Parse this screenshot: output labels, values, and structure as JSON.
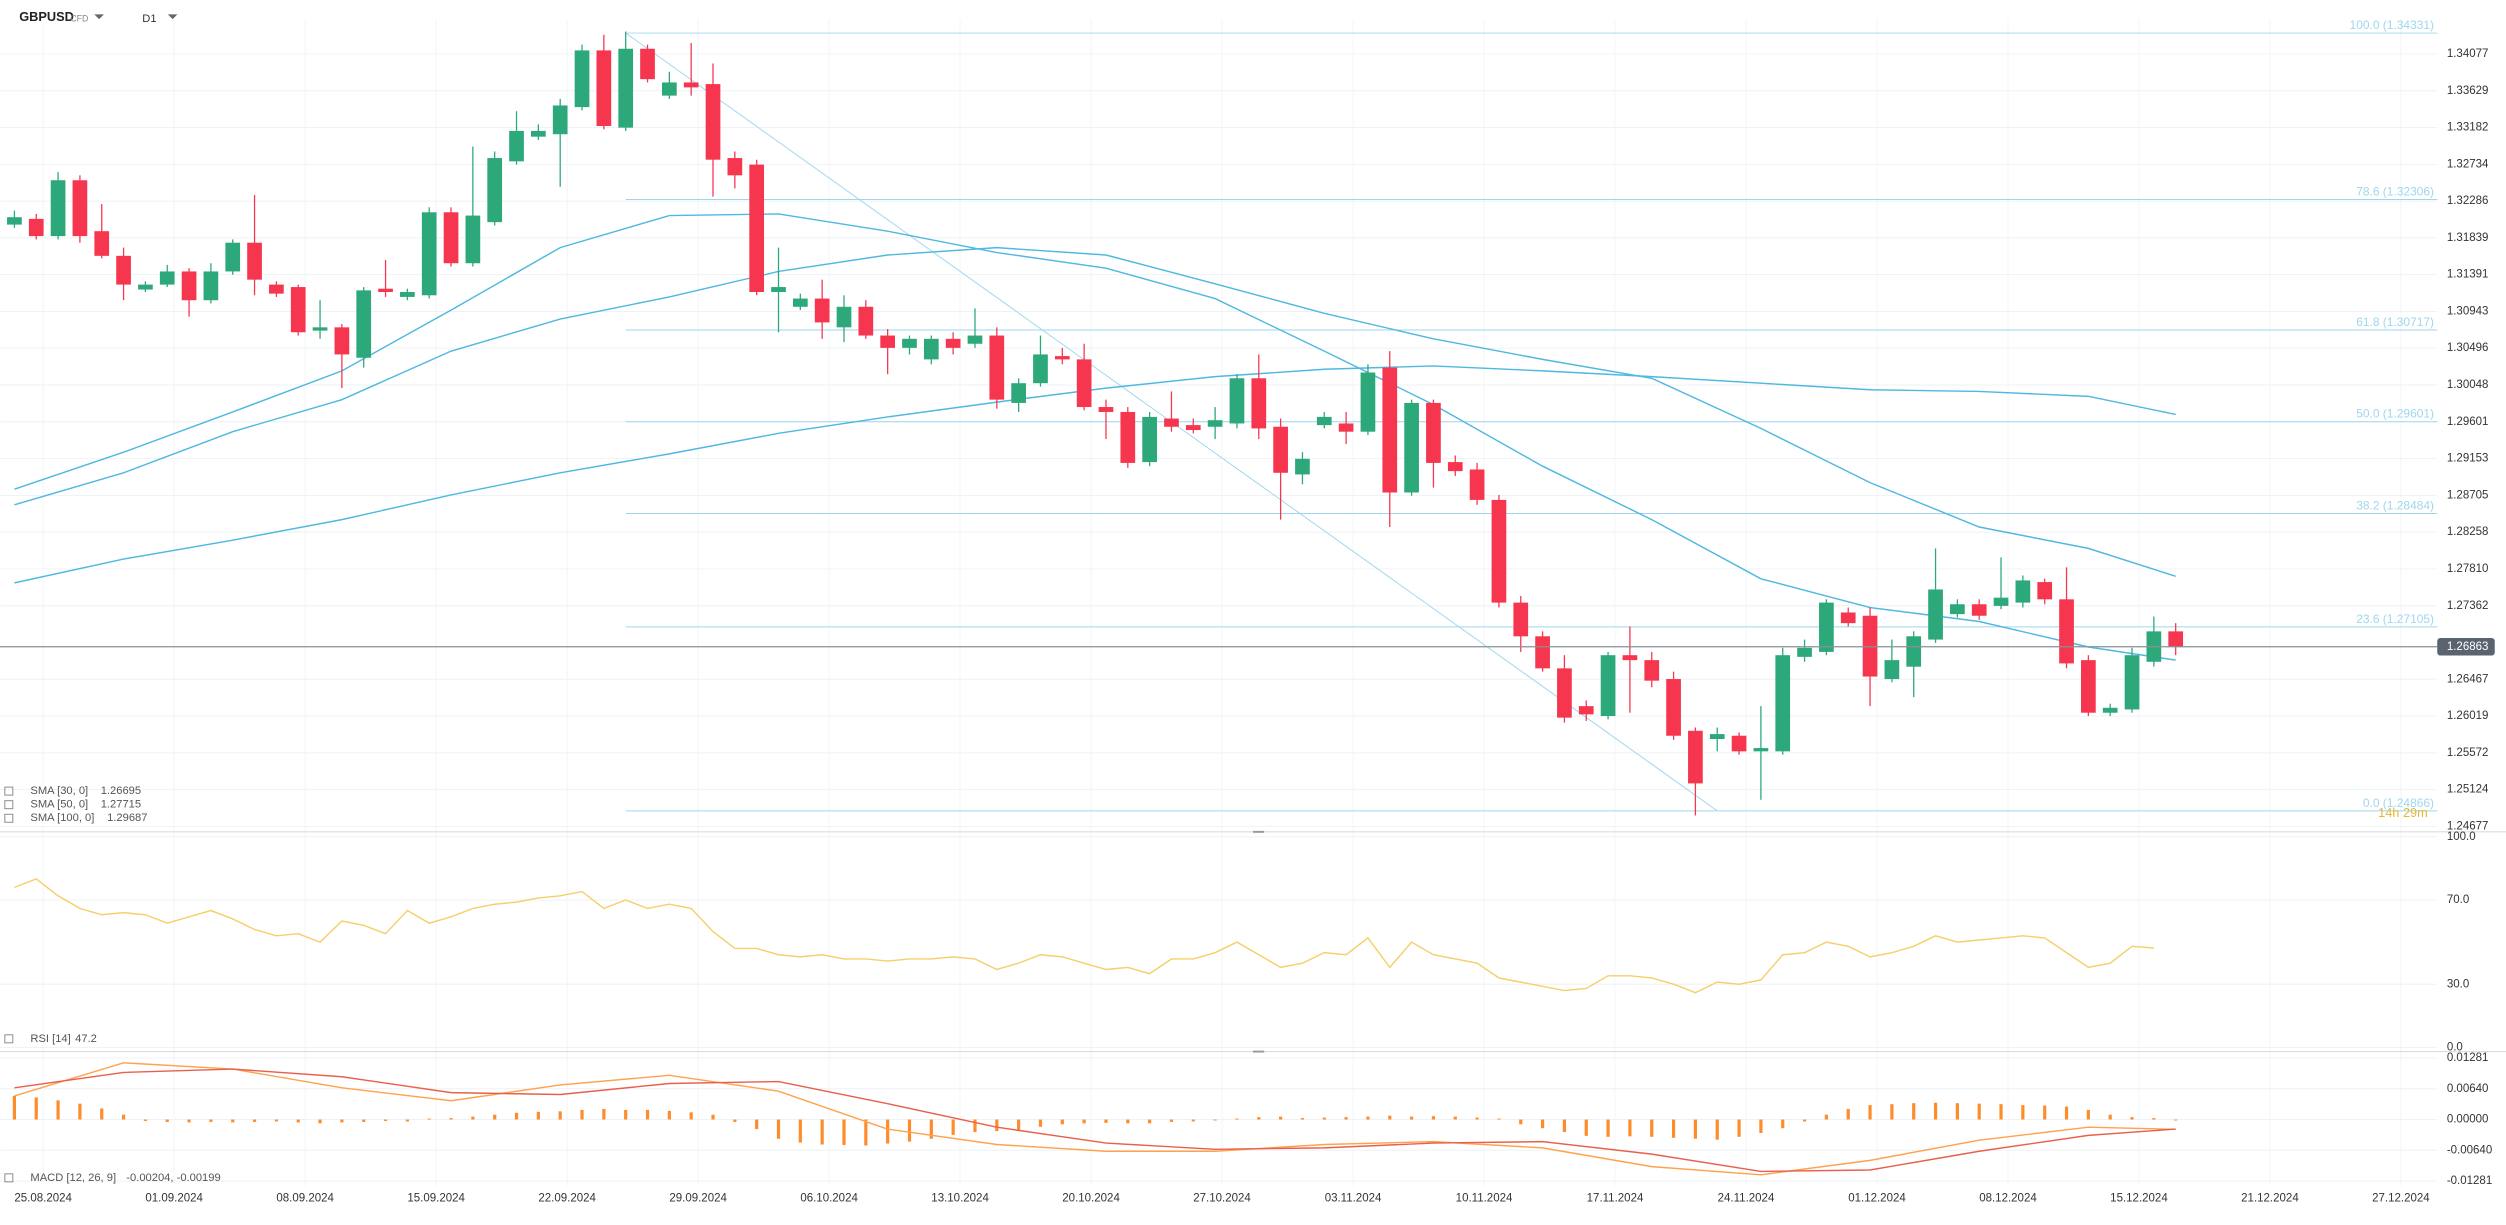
{
  "header": {
    "symbol": "GBPUSD",
    "kind": "CFD",
    "timeframe": "D1",
    "countdown": "14h 29m"
  },
  "chart_data": [
    {
      "type": "candlestick",
      "up_color": "#2ca87a",
      "down_color": "#f6364f",
      "ylim": [
        1.2462,
        1.345
      ],
      "yticks": [
        1.34077,
        1.33629,
        1.33182,
        1.32734,
        1.32286,
        1.31839,
        1.31391,
        1.30943,
        1.30496,
        1.30048,
        1.29601,
        1.29153,
        1.28705,
        1.28258,
        {
          "value": 1.2781,
          "label": "1.27810"
        },
        1.27362,
        1.26467,
        1.26019,
        1.25572,
        1.25124,
        1.24677
      ],
      "grid": true,
      "last_price": 1.26863,
      "levels": [
        {
          "value": 1.34331,
          "label": "100.0 (1.34331)"
        },
        {
          "value": 1.32306,
          "label": "78.6 (1.32306)"
        },
        {
          "value": 1.30717,
          "label": "61.8 (1.30717)"
        },
        {
          "value": 1.29601,
          "label": "50.0 (1.29601)"
        },
        {
          "value": 1.28484,
          "label": "38.2 (1.28484)"
        },
        {
          "value": 1.27105,
          "label": "23.6 (1.27105)"
        },
        {
          "value": 1.24866,
          "label": "0.0 (1.24866)"
        }
      ],
      "level_color": "#9fd6ee",
      "candles": [
        [
          1.32,
          1.3217,
          1.3196,
          1.3209
        ],
        [
          1.3207,
          1.3213,
          1.3182,
          1.3186
        ],
        [
          1.3186,
          1.3264,
          1.3182,
          1.3254
        ],
        [
          1.3254,
          1.326,
          1.3178,
          1.3186
        ],
        [
          1.3192,
          1.3225,
          1.3159,
          1.3162
        ],
        [
          1.3162,
          1.3172,
          1.3108,
          1.3127
        ],
        [
          1.3121,
          1.3131,
          1.3118,
          1.3127
        ],
        [
          1.3127,
          1.3151,
          1.3124,
          1.3143
        ],
        [
          1.3143,
          1.3147,
          1.3088,
          1.3108
        ],
        [
          1.3108,
          1.3153,
          1.3104,
          1.3143
        ],
        [
          1.3143,
          1.3182,
          1.3139,
          1.3178
        ],
        [
          1.3178,
          1.3236,
          1.3114,
          1.3133
        ],
        [
          1.3127,
          1.3131,
          1.3112,
          1.3116
        ],
        [
          1.3124,
          1.3127,
          1.3065,
          1.3069
        ],
        [
          1.3071,
          1.3108,
          1.3061,
          1.3075
        ],
        [
          1.3075,
          1.3079,
          1.3001,
          1.3042
        ],
        [
          1.3038,
          1.3124,
          1.3026,
          1.312
        ],
        [
          1.3122,
          1.3157,
          1.3112,
          1.3118
        ],
        [
          1.3112,
          1.3122,
          1.3108,
          1.3118
        ],
        [
          1.3114,
          1.3221,
          1.311,
          1.3215
        ],
        [
          1.3215,
          1.3221,
          1.3149,
          1.3153
        ],
        [
          1.3153,
          1.3295,
          1.3149,
          1.3211
        ],
        [
          1.3203,
          1.3289,
          1.3199,
          1.3281
        ],
        [
          1.3277,
          1.3338,
          1.3273,
          1.3314
        ],
        [
          1.3307,
          1.3322,
          1.3303,
          1.3314
        ],
        [
          1.331,
          1.3353,
          1.3246,
          1.3345
        ],
        [
          1.3343,
          1.3419,
          1.3339,
          1.3412
        ],
        [
          1.3412,
          1.3431,
          1.3316,
          1.332
        ],
        [
          1.3318,
          1.3435,
          1.3314,
          1.3414
        ],
        [
          1.3414,
          1.3419,
          1.3373,
          1.3377
        ],
        [
          1.3357,
          1.3386,
          1.3353,
          1.3373
        ],
        [
          1.3373,
          1.3421,
          1.3357,
          1.3367
        ],
        [
          1.3371,
          1.3396,
          1.3234,
          1.3279
        ],
        [
          1.3281,
          1.3289,
          1.3244,
          1.326
        ],
        [
          1.3273,
          1.3279,
          1.3114,
          1.3118
        ],
        [
          1.3118,
          1.3172,
          1.3069,
          1.3124
        ],
        [
          1.31,
          1.3116,
          1.3096,
          1.311
        ],
        [
          1.311,
          1.3133,
          1.3061,
          1.3081
        ],
        [
          1.3075,
          1.3114,
          1.3057,
          1.31
        ],
        [
          1.31,
          1.3108,
          1.3061,
          1.3065
        ],
        [
          1.3065,
          1.3073,
          1.3018,
          1.305
        ],
        [
          1.305,
          1.3065,
          1.3042,
          1.3061
        ],
        [
          1.3036,
          1.3065,
          1.303,
          1.3061
        ],
        [
          1.3061,
          1.3069,
          1.3042,
          1.305
        ],
        [
          1.3055,
          1.3098,
          1.305,
          1.3065
        ],
        [
          1.3065,
          1.3075,
          1.2976,
          1.2987
        ],
        [
          1.2983,
          1.3013,
          1.2972,
          1.3007
        ],
        [
          1.3007,
          1.3065,
          1.3003,
          1.3042
        ],
        [
          1.304,
          1.305,
          1.303,
          1.3036
        ],
        [
          1.3036,
          1.3055,
          1.2974,
          1.2978
        ],
        [
          1.2978,
          1.2987,
          1.2939,
          1.2972
        ],
        [
          1.2972,
          1.2978,
          1.2904,
          1.291
        ],
        [
          1.2911,
          1.2972,
          1.2906,
          1.2966
        ],
        [
          1.2964,
          1.2997,
          1.2948,
          1.2954
        ],
        [
          1.2956,
          1.2964,
          1.2946,
          1.295
        ],
        [
          1.2954,
          1.2978,
          1.2939,
          1.2962
        ],
        [
          1.2958,
          1.3018,
          1.2952,
          1.3013
        ],
        [
          1.3013,
          1.3042,
          1.2939,
          1.2952
        ],
        [
          1.2954,
          1.2964,
          1.2841,
          1.2898
        ],
        [
          1.2896,
          1.2923,
          1.2884,
          1.2915
        ],
        [
          1.2956,
          1.2972,
          1.2952,
          1.2966
        ],
        [
          1.2958,
          1.2972,
          1.2933,
          1.2948
        ],
        [
          1.2948,
          1.303,
          1.2944,
          1.302
        ],
        [
          1.3026,
          1.3046,
          1.2832,
          1.2874
        ],
        [
          1.2874,
          1.2987,
          1.287,
          1.2983
        ],
        [
          1.2983,
          1.2987,
          1.288,
          1.291
        ],
        [
          1.2911,
          1.2919,
          1.2894,
          1.29
        ],
        [
          1.2902,
          1.291,
          1.2859,
          1.2865
        ],
        [
          1.2865,
          1.2871,
          1.2734,
          1.274
        ],
        [
          1.274,
          1.2748,
          1.268,
          1.2699
        ],
        [
          1.2699,
          1.2705,
          1.2656,
          1.266
        ],
        [
          1.266,
          1.2676,
          1.2594,
          1.26
        ],
        [
          1.2614,
          1.2621,
          1.2596,
          1.2604
        ],
        [
          1.2602,
          1.268,
          1.2598,
          1.2676
        ],
        [
          1.2676,
          1.2711,
          1.2606,
          1.267
        ],
        [
          1.267,
          1.268,
          1.2637,
          1.2645
        ],
        [
          1.2647,
          1.2656,
          1.2573,
          1.2578
        ],
        [
          1.2584,
          1.2588,
          1.2481,
          1.252
        ],
        [
          1.2574,
          1.2588,
          1.2559,
          1.258
        ],
        [
          1.2578,
          1.2582,
          1.2555,
          1.2559
        ],
        [
          1.2559,
          1.2614,
          1.25,
          1.2563
        ],
        [
          1.2559,
          1.2685,
          1.2555,
          1.2676
        ],
        [
          1.2674,
          1.2695,
          1.2668,
          1.2685
        ],
        [
          1.268,
          1.2744,
          1.2676,
          1.274
        ],
        [
          1.2728,
          1.2734,
          1.2711,
          1.2715
        ],
        [
          1.2724,
          1.2734,
          1.2614,
          1.265
        ],
        [
          1.2647,
          1.2695,
          1.2643,
          1.267
        ],
        [
          1.2662,
          1.2705,
          1.2625,
          1.2699
        ],
        [
          1.2695,
          1.2806,
          1.2691,
          1.2756
        ],
        [
          1.2726,
          1.2744,
          1.2722,
          1.2738
        ],
        [
          1.2738,
          1.2744,
          1.2719,
          1.2724
        ],
        [
          1.2736,
          1.2795,
          1.2732,
          1.2746
        ],
        [
          1.274,
          1.2773,
          1.2734,
          1.2767
        ],
        [
          1.2765,
          1.2769,
          1.2738,
          1.2744
        ],
        [
          1.2744,
          1.2783,
          1.266,
          1.2666
        ],
        [
          1.267,
          1.2676,
          1.2602,
          1.2606
        ],
        [
          1.2606,
          1.2617,
          1.2602,
          1.2612
        ],
        [
          1.261,
          1.2685,
          1.2606,
          1.2676
        ],
        [
          1.2668,
          1.2723,
          1.2662,
          1.2705
        ],
        [
          1.2705,
          1.2715,
          1.2676,
          1.2686
        ]
      ],
      "series": [
        {
          "name": "SMA [30, 0]",
          "last": 1.26695,
          "color": "#4fb8e0",
          "x": [
            0,
            5,
            10,
            15,
            20,
            25,
            30,
            35,
            40,
            45,
            50,
            55,
            60,
            65,
            70,
            75,
            80,
            85,
            90,
            95,
            99
          ],
          "values": [
            1.2878,
            1.2923,
            1.2972,
            1.3022,
            1.3096,
            1.3172,
            1.3211,
            1.3213,
            1.3192,
            1.3166,
            1.3147,
            1.311,
            1.3046,
            1.2981,
            1.2906,
            1.2841,
            1.2769,
            1.2734,
            1.2717,
            1.2686,
            1.267
          ]
        },
        {
          "name": "SMA [50, 0]",
          "last": 1.27715,
          "color": "#4fb8e0",
          "x": [
            0,
            5,
            10,
            15,
            20,
            25,
            30,
            35,
            40,
            45,
            50,
            55,
            60,
            65,
            70,
            75,
            80,
            85,
            90,
            95,
            99
          ],
          "values": [
            1.2859,
            1.2898,
            1.2948,
            1.2987,
            1.3046,
            1.3085,
            1.3112,
            1.3143,
            1.3163,
            1.3172,
            1.3163,
            1.3128,
            1.3092,
            1.3061,
            1.3036,
            1.3013,
            1.2952,
            1.2886,
            1.2832,
            1.2806,
            1.2772
          ]
        },
        {
          "name": "SMA [100, 0]",
          "last": 1.29687,
          "color": "#4fb8e0",
          "x": [
            0,
            5,
            10,
            15,
            20,
            25,
            30,
            35,
            40,
            45,
            50,
            55,
            60,
            65,
            70,
            75,
            80,
            85,
            90,
            95,
            99
          ],
          "values": [
            1.2764,
            1.2793,
            1.2816,
            1.2841,
            1.2871,
            1.2898,
            1.2921,
            1.2946,
            1.2966,
            1.2984,
            1.3001,
            1.3015,
            1.3024,
            1.3028,
            1.3022,
            1.3015,
            1.3007,
            1.2999,
            1.2997,
            1.2991,
            1.2969
          ]
        }
      ]
    },
    {
      "type": "line",
      "ylim": [
        -2,
        102
      ],
      "yticks": [
        {
          "value": 100,
          "label": "100.0"
        },
        {
          "value": 70,
          "label": "70.0"
        },
        {
          "value": 30,
          "label": "30.0"
        },
        {
          "value": 0,
          "label": "0.0"
        }
      ],
      "series": [
        {
          "name": "RSI [14]",
          "last": 47.2,
          "color": "#f5cf6a",
          "values": [
            76,
            80,
            72,
            66,
            63,
            64,
            63,
            59,
            62,
            65,
            61,
            56,
            53,
            54,
            50,
            60,
            58,
            54,
            65,
            59,
            62,
            66,
            68,
            69,
            71,
            72,
            74,
            66,
            70,
            66,
            68,
            66,
            55,
            47,
            47,
            44,
            43,
            44,
            42,
            42,
            41,
            42,
            42,
            43,
            42,
            37,
            40,
            44,
            43,
            40,
            37,
            38,
            35,
            42,
            42,
            45,
            50,
            44,
            38,
            40,
            45,
            44,
            52,
            38,
            50,
            44,
            42,
            40,
            33,
            31,
            29,
            27,
            28,
            34,
            34,
            33,
            30,
            26,
            31,
            30,
            32,
            44,
            45,
            50,
            48,
            43,
            45,
            48,
            53,
            50,
            51,
            52,
            53,
            52,
            45,
            38,
            40,
            48,
            47.2
          ]
        }
      ]
    },
    {
      "type": "macd",
      "name": "MACD [12, 26, 9]",
      "legend_values": "-0.00204, -0.00199",
      "ylim": [
        -0.0138,
        0.0138
      ],
      "yticks": [
        0.01281,
        {
          "value": 0.0064,
          "label": "0.00640"
        },
        {
          "value": 0,
          "label": "0.00000"
        },
        {
          "value": -0.0064,
          "label": "-0.00640"
        },
        -0.01281
      ],
      "histogram": {
        "color": "#ff8c2a",
        "values": [
          0.0049,
          0.0046,
          0.004,
          0.0033,
          0.0023,
          0.001,
          -0.0003,
          -0.0005,
          -0.0006,
          -0.0005,
          -0.0006,
          -0.0005,
          -0.0004,
          -0.0006,
          -0.0008,
          -0.0006,
          -0.0005,
          -0.0003,
          -0.0004,
          0.0002,
          0.0003,
          0.0006,
          0.001,
          0.0014,
          0.0016,
          0.0017,
          0.002,
          0.0022,
          0.002,
          0.002,
          0.0018,
          0.0015,
          0.001,
          -0.0005,
          -0.002,
          -0.004,
          -0.0048,
          -0.0052,
          -0.0053,
          -0.0054,
          -0.005,
          -0.0046,
          -0.004,
          -0.0032,
          -0.0026,
          -0.0024,
          -0.0022,
          -0.0015,
          -0.001,
          -0.0008,
          -0.0007,
          -0.0008,
          -0.0008,
          -0.0005,
          -0.0004,
          -0.0002,
          0.0002,
          0.0005,
          0.0006,
          0.0003,
          0.0004,
          0.0005,
          0.0006,
          0.0008,
          0.0006,
          0.0007,
          0.0006,
          0.0004,
          0.0002,
          -0.001,
          -0.0018,
          -0.0026,
          -0.0034,
          -0.0036,
          -0.0035,
          -0.0036,
          -0.0038,
          -0.004,
          -0.0042,
          -0.0036,
          -0.0028,
          -0.0018,
          -0.0004,
          0.001,
          0.0022,
          0.003,
          0.0032,
          0.0034,
          0.0035,
          0.0034,
          0.0033,
          0.0032,
          0.003,
          0.0029,
          0.0027,
          0.002,
          0.001,
          0.0005,
          0.0003,
          -5e-05
        ]
      },
      "macd_line": {
        "color": "#ffa24d",
        "x": [
          0,
          5,
          10,
          15,
          20,
          25,
          30,
          35,
          40,
          45,
          50,
          55,
          60,
          65,
          70,
          75,
          80,
          85,
          90,
          95,
          99
        ],
        "values": [
          0.0049,
          0.0118,
          0.0105,
          0.0066,
          0.0039,
          0.0072,
          0.0092,
          0.0059,
          -0.002,
          -0.0052,
          -0.0066,
          -0.0066,
          -0.0052,
          -0.0046,
          -0.0059,
          -0.0098,
          -0.0115,
          -0.0085,
          -0.0043,
          -0.0016,
          -0.00204
        ]
      },
      "signal_line": {
        "color": "#e8604c",
        "x": [
          0,
          5,
          10,
          15,
          20,
          25,
          30,
          35,
          40,
          45,
          50,
          55,
          60,
          65,
          70,
          75,
          80,
          85,
          90,
          95,
          99
        ],
        "values": [
          0.0066,
          0.0098,
          0.0105,
          0.0089,
          0.0056,
          0.0052,
          0.0075,
          0.0079,
          0.0033,
          -0.0016,
          -0.0049,
          -0.0062,
          -0.0059,
          -0.0049,
          -0.0046,
          -0.0072,
          -0.0108,
          -0.0105,
          -0.0066,
          -0.0033,
          -0.00199
        ]
      },
      "xticks": [
        "25.08.2024",
        "01.09.2024",
        "08.09.2024",
        "15.09.2024",
        "22.09.2024",
        "29.09.2024",
        "06.10.2024",
        "13.10.2024",
        "20.10.2024",
        "27.10.2024",
        "03.11.2024",
        "10.11.2024",
        "17.11.2024",
        "24.11.2024",
        "01.12.2024",
        "08.12.2024",
        "15.12.2024",
        "21.12.2024",
        "27.12.2024"
      ]
    }
  ]
}
